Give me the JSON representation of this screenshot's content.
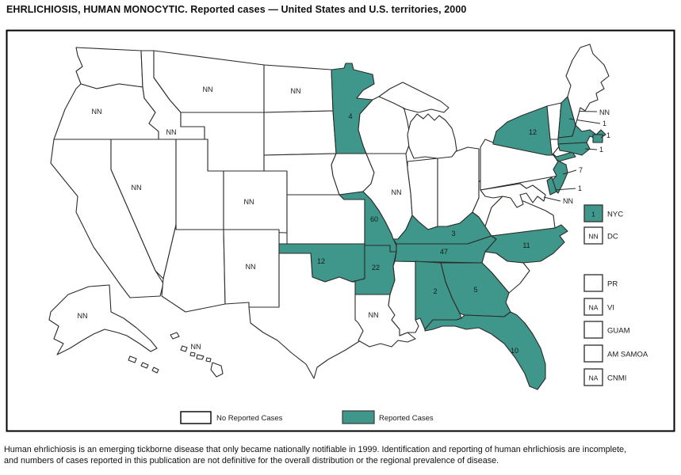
{
  "title": "EHRLICHIOSIS, HUMAN MONOCYTIC. Reported cases — United States and U.S. territories, 2000",
  "footer": {
    "line1": "Human ehrlichiosis is an emerging tickborne disease that only became nationally notifiable in 1999. Identification and reporting of human ehrlichiosis are incomplete,",
    "line2": "and numbers of cases reported in this publication are not definitive for the overall distribution or the regional prevalence of disease."
  },
  "legend": {
    "no_cases_label": "No Reported Cases",
    "reported_label": "Reported Cases"
  },
  "colors": {
    "reported": "#3F968A",
    "no_cases": "#FFFFFF",
    "outline": "#2B2B28",
    "label_text": "#1A1A1A"
  },
  "states": [
    {
      "id": "WA",
      "value": "",
      "reported": false
    },
    {
      "id": "OR",
      "value": "NN",
      "reported": false
    },
    {
      "id": "CA",
      "value": "",
      "reported": false
    },
    {
      "id": "NV",
      "value": "NN",
      "reported": false
    },
    {
      "id": "ID",
      "value": "NN",
      "reported": false
    },
    {
      "id": "MT",
      "value": "NN",
      "reported": false
    },
    {
      "id": "WY",
      "value": "",
      "reported": false
    },
    {
      "id": "UT",
      "value": "",
      "reported": false
    },
    {
      "id": "CO",
      "value": "NN",
      "reported": false
    },
    {
      "id": "AZ",
      "value": "",
      "reported": false
    },
    {
      "id": "NM",
      "value": "NN",
      "reported": false
    },
    {
      "id": "ND",
      "value": "NN",
      "reported": false
    },
    {
      "id": "SD",
      "value": "",
      "reported": false
    },
    {
      "id": "NE",
      "value": "",
      "reported": false
    },
    {
      "id": "KS",
      "value": "",
      "reported": false
    },
    {
      "id": "OK",
      "value": "12",
      "reported": true
    },
    {
      "id": "TX",
      "value": "",
      "reported": false
    },
    {
      "id": "MN",
      "value": "4",
      "reported": true
    },
    {
      "id": "IA",
      "value": "",
      "reported": false
    },
    {
      "id": "WI",
      "value": "",
      "reported": false
    },
    {
      "id": "MO",
      "value": "60",
      "reported": true
    },
    {
      "id": "AR",
      "value": "22",
      "reported": true
    },
    {
      "id": "LA",
      "value": "NN",
      "reported": false
    },
    {
      "id": "MS",
      "value": "",
      "reported": false
    },
    {
      "id": "IL",
      "value": "NN",
      "reported": false
    },
    {
      "id": "IN",
      "value": "",
      "reported": false
    },
    {
      "id": "OH",
      "value": "",
      "reported": false
    },
    {
      "id": "KY",
      "value": "3",
      "reported": true
    },
    {
      "id": "TN",
      "value": "47",
      "reported": true
    },
    {
      "id": "WV",
      "value": "",
      "reported": false
    },
    {
      "id": "VA",
      "value": "",
      "reported": false
    },
    {
      "id": "NC",
      "value": "11",
      "reported": true
    },
    {
      "id": "SC",
      "value": "",
      "reported": false
    },
    {
      "id": "GA",
      "value": "5",
      "reported": true
    },
    {
      "id": "AL",
      "value": "2",
      "reported": true
    },
    {
      "id": "FL",
      "value": "10",
      "reported": true
    },
    {
      "id": "MI",
      "value": "",
      "reported": false
    },
    {
      "id": "PA",
      "value": "",
      "reported": false
    },
    {
      "id": "NY",
      "value": "12",
      "reported": true
    },
    {
      "id": "VT",
      "value": "NN",
      "reported": false
    },
    {
      "id": "NH",
      "value": "1",
      "reported": true
    },
    {
      "id": "ME",
      "value": "",
      "reported": false
    },
    {
      "id": "MA",
      "value": "",
      "reported": true
    },
    {
      "id": "RI",
      "value": "1",
      "reported": true
    },
    {
      "id": "CT",
      "value": "1",
      "reported": true
    },
    {
      "id": "NJ",
      "value": "7",
      "reported": true
    },
    {
      "id": "DE",
      "value": "1",
      "reported": true
    },
    {
      "id": "MD",
      "value": "NN",
      "reported": false
    },
    {
      "id": "AK",
      "value": "NN",
      "reported": false
    },
    {
      "id": "HI",
      "value": "NN",
      "reported": false
    }
  ],
  "territories": [
    {
      "id": "NYC",
      "label": "NYC",
      "value": "1",
      "reported": true
    },
    {
      "id": "DC",
      "label": "DC",
      "value": "NN",
      "reported": false
    },
    {
      "id": "PR",
      "label": "PR",
      "value": "",
      "reported": false
    },
    {
      "id": "VI",
      "label": "VI",
      "value": "NA",
      "reported": false
    },
    {
      "id": "GUAM",
      "label": "GUAM",
      "value": "",
      "reported": false
    },
    {
      "id": "AM-SAMOA",
      "label": "AM SAMOA",
      "value": "",
      "reported": false
    },
    {
      "id": "CNMI",
      "label": "CNMI",
      "value": "NA",
      "reported": false
    }
  ]
}
